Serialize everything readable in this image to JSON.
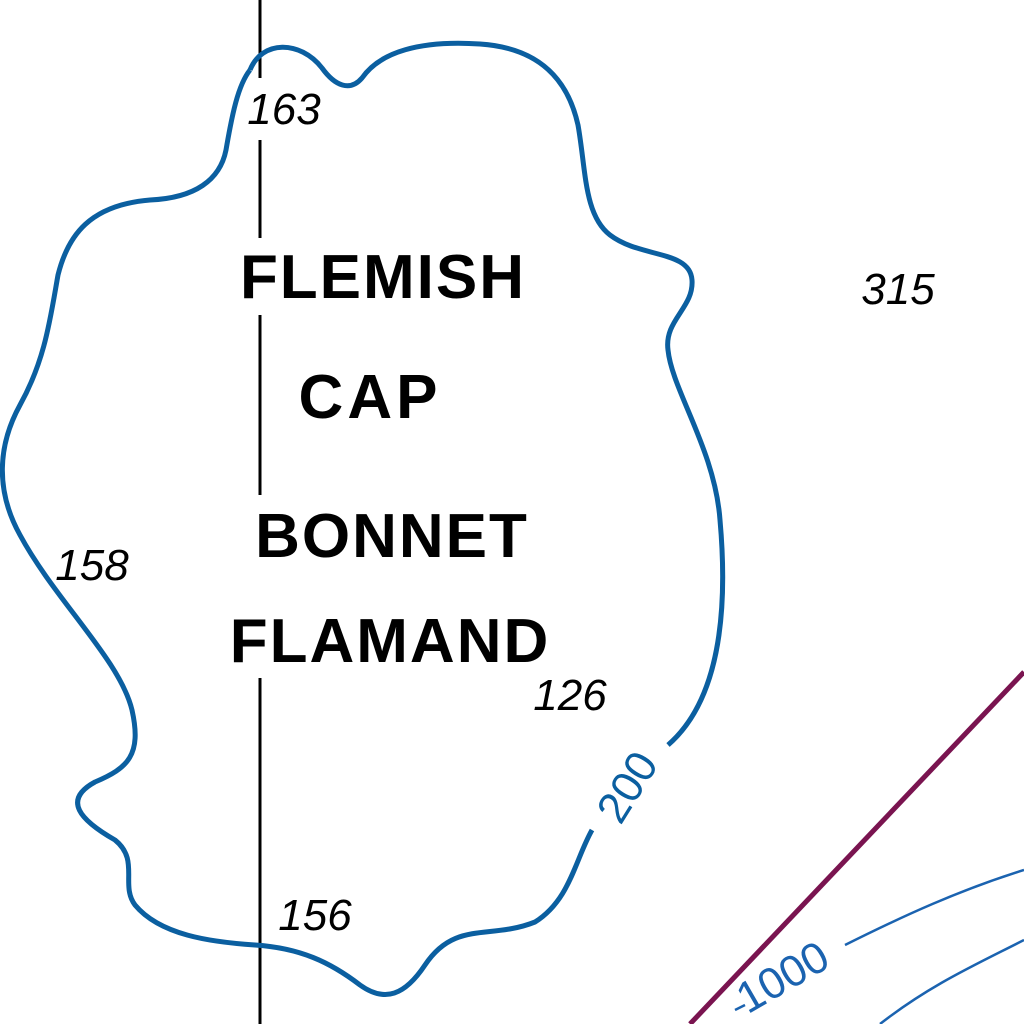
{
  "map": {
    "place_names": {
      "english_line1": "FLEMISH",
      "english_line2": "CAP",
      "french_line1": "BONNET",
      "french_line2": "FLAMAND"
    },
    "soundings": [
      "163",
      "315",
      "158",
      "126",
      "156"
    ],
    "contours": {
      "label_200": "200",
      "label_1000": "1000"
    },
    "colors": {
      "contour_200": "#0b5fa0",
      "contour_1000": "#1b63b0",
      "boundary_line": "#7a1450",
      "meridian": "#000000",
      "text": "#000000"
    }
  }
}
